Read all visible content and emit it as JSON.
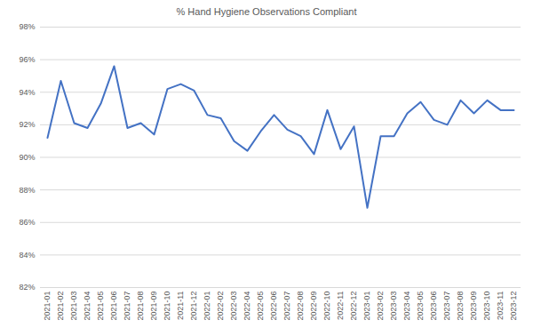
{
  "chart_data": {
    "type": "line",
    "title": "% Hand Hygiene Observations Compliant",
    "categories": [
      "2021-01",
      "2021-02",
      "2021-03",
      "2021-04",
      "2021-05",
      "2021-06",
      "2021-07",
      "2021-08",
      "2021-09",
      "2021-10",
      "2021-11",
      "2021-12",
      "2022-01",
      "2022-02",
      "2022-03",
      "2022-04",
      "2022-05",
      "2022-06",
      "2022-07",
      "2022-08",
      "2022-09",
      "2022-10",
      "2022-11",
      "2022-12",
      "2023-01",
      "2023-02",
      "2023-03",
      "2023-04",
      "2023-05",
      "2023-06",
      "2023-07",
      "2023-08",
      "2023-09",
      "2023-10",
      "2023-11",
      "2023-12"
    ],
    "values": [
      91.2,
      94.7,
      92.1,
      91.8,
      93.3,
      95.6,
      91.8,
      92.1,
      91.4,
      94.2,
      94.5,
      94.1,
      92.6,
      92.4,
      91.0,
      90.4,
      91.6,
      92.6,
      91.7,
      91.3,
      90.2,
      92.9,
      90.5,
      91.9,
      86.9,
      91.3,
      91.3,
      92.7,
      93.4,
      92.3,
      92.0,
      93.5,
      92.7,
      93.5,
      92.9,
      92.9
    ],
    "color": "#4472c4",
    "ylim": [
      82,
      98
    ],
    "yticks": [
      {
        "value": 82,
        "label": "82%"
      },
      {
        "value": 84,
        "label": "84%"
      },
      {
        "value": 86,
        "label": "86%"
      },
      {
        "value": 88,
        "label": "88%"
      },
      {
        "value": 90,
        "label": "90%"
      },
      {
        "value": 92,
        "label": "92%"
      },
      {
        "value": 94,
        "label": "94%"
      },
      {
        "value": 96,
        "label": "96%"
      },
      {
        "value": 98,
        "label": "98%"
      }
    ],
    "grid": true
  }
}
